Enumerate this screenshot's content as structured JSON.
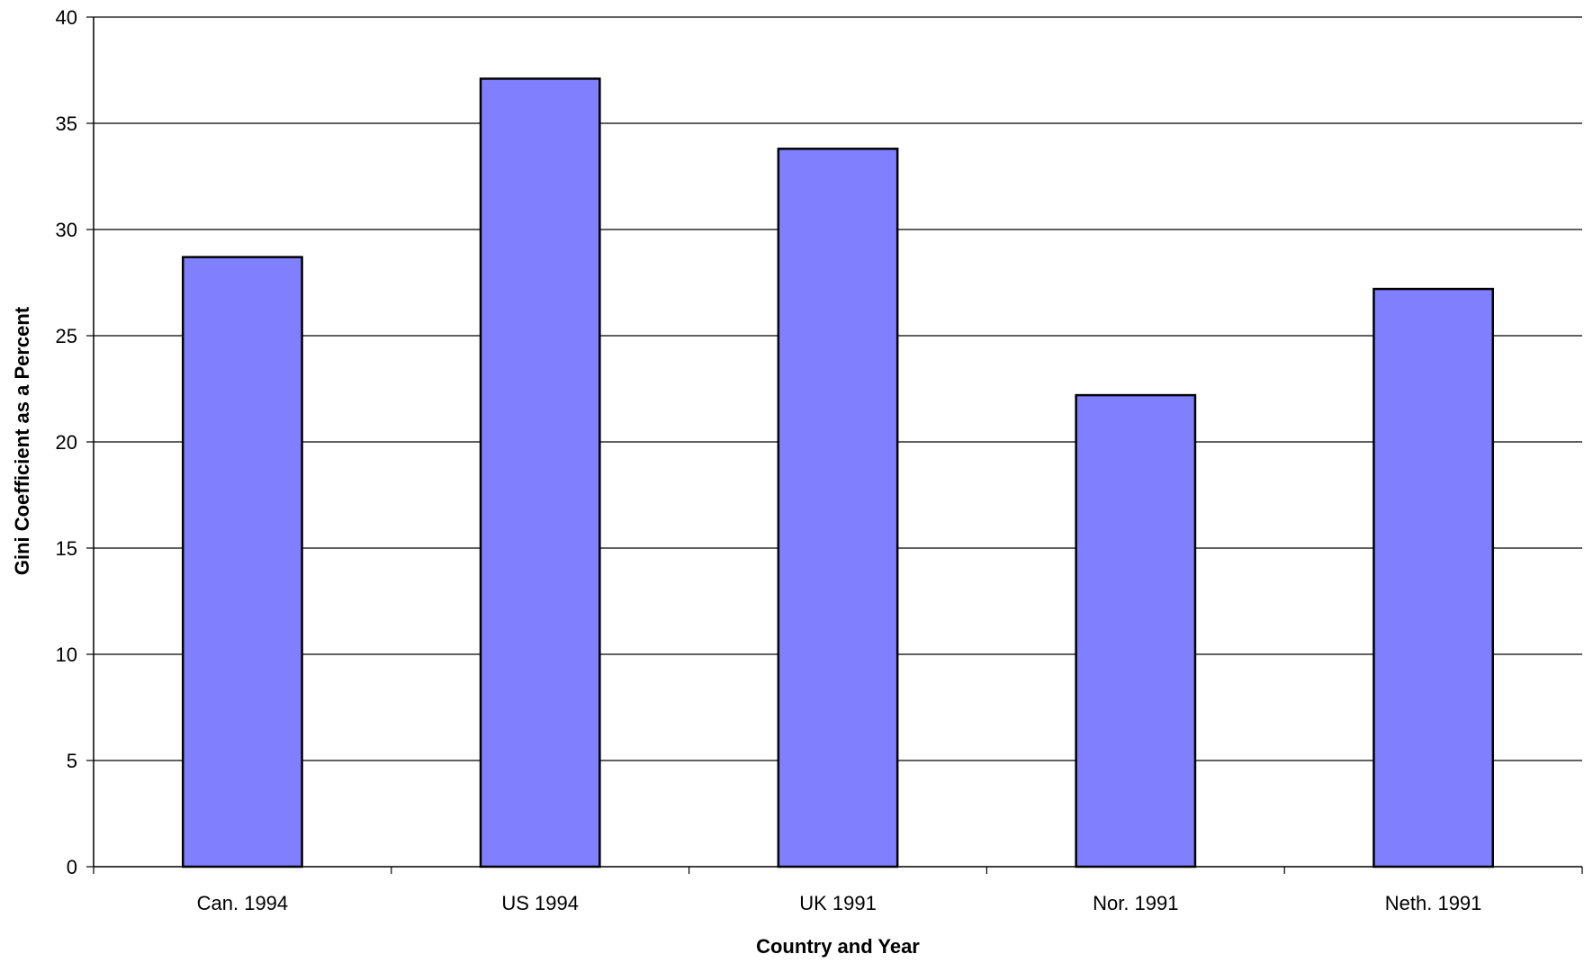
{
  "chart_data": {
    "type": "bar",
    "title": "",
    "xlabel": "Country and Year",
    "ylabel": "Gini Coefficient as a Percent",
    "categories": [
      "Can. 1994",
      "US 1994",
      "UK 1991",
      "Nor. 1991",
      "Neth. 1991"
    ],
    "values": [
      28.7,
      37.1,
      33.8,
      22.2,
      27.2
    ],
    "ylim": [
      0,
      40
    ],
    "yticks": [
      "0",
      "5",
      "10",
      "15",
      "20",
      "25",
      "30",
      "35",
      "40"
    ],
    "grid": true,
    "legend": "none",
    "colors": {
      "bar_fill": "#8080ff",
      "bar_stroke": "#000000",
      "gridline": "#000000",
      "background": "#ffffff"
    }
  }
}
